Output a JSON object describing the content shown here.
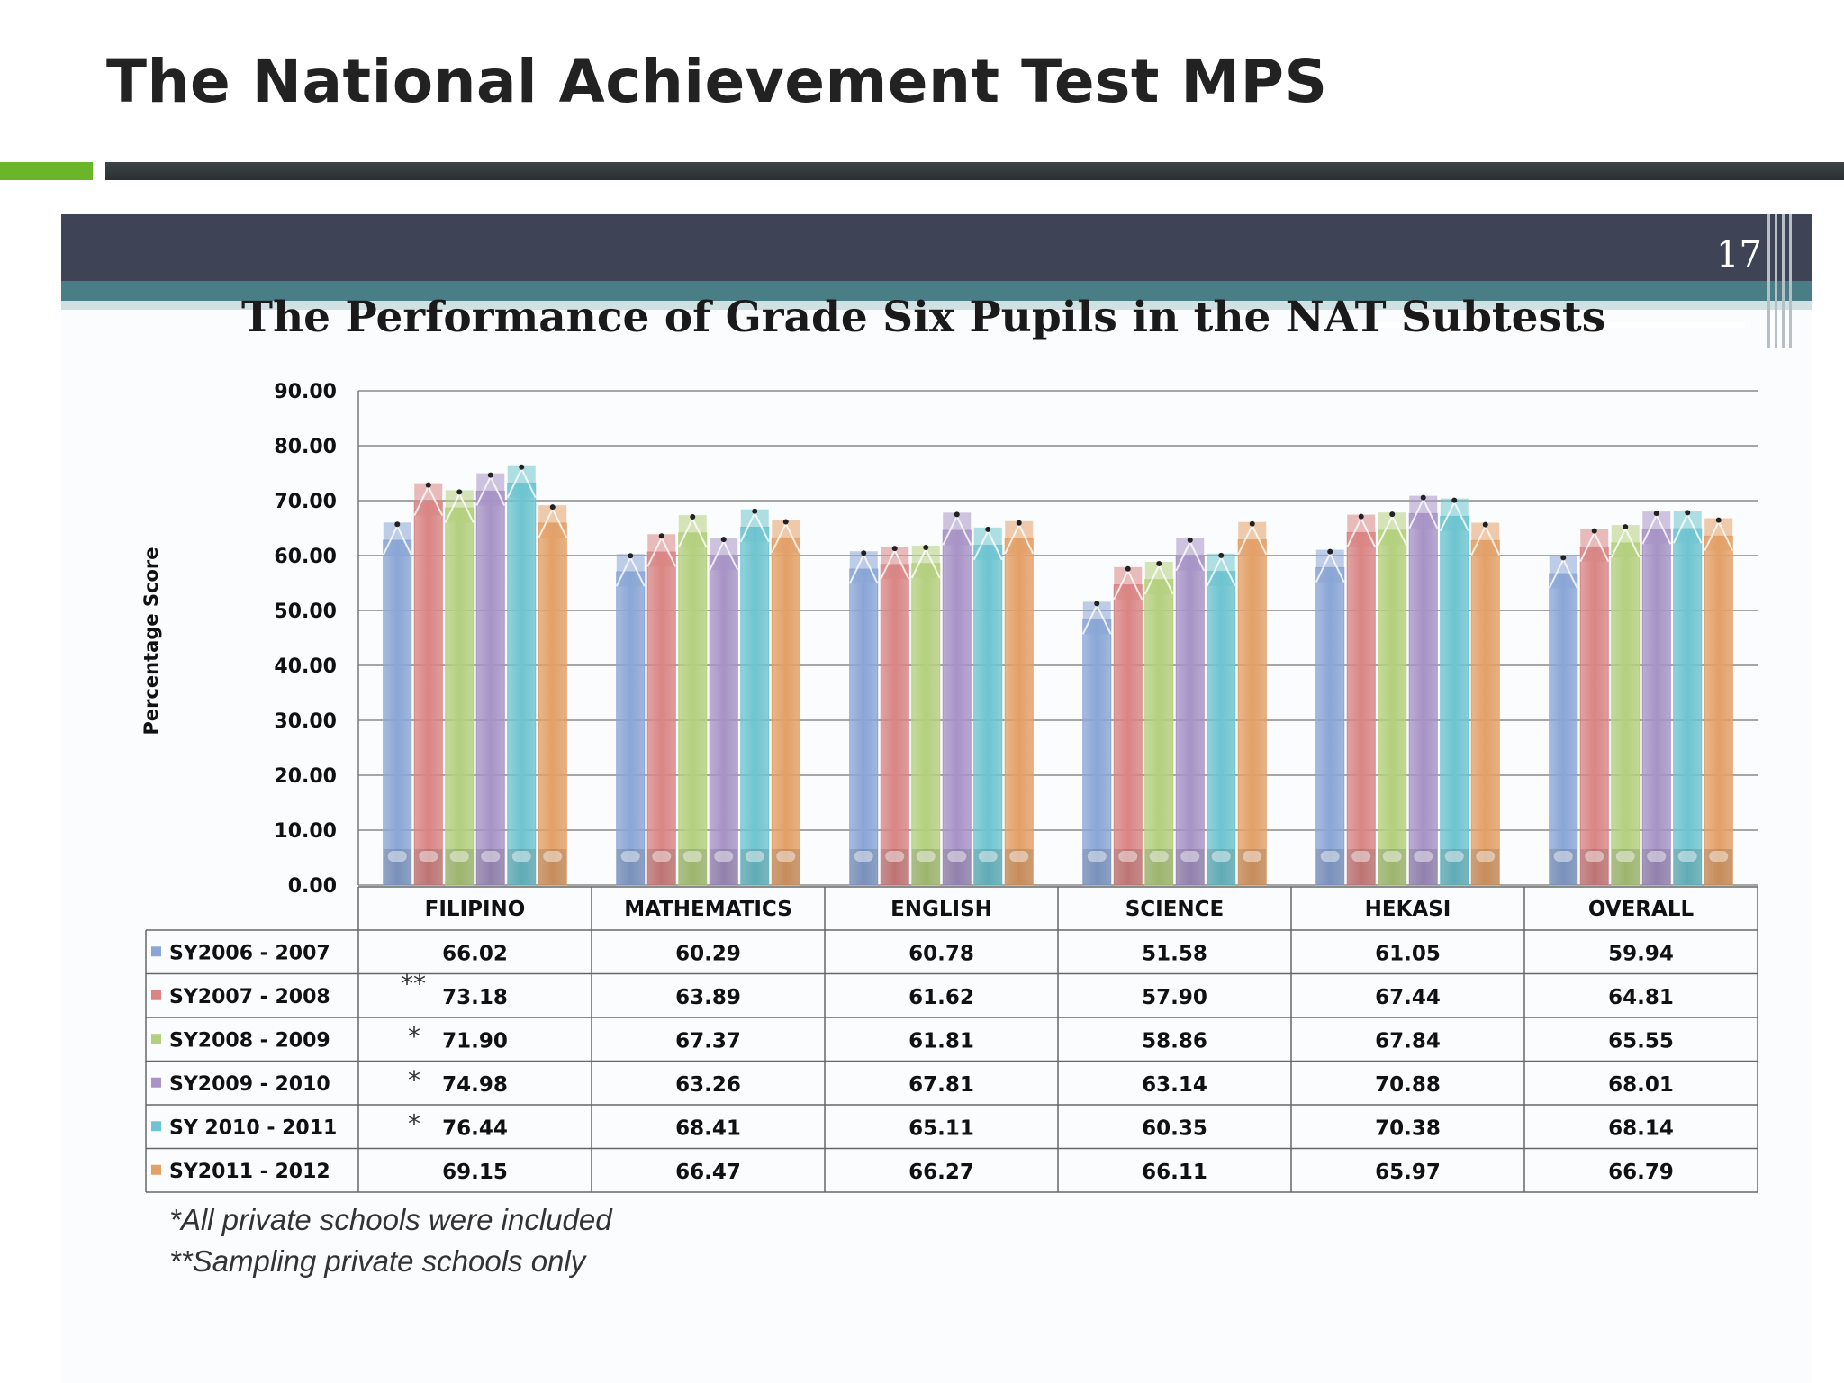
{
  "slide": {
    "title": "The National Achievement Test MPS",
    "page_number": "17"
  },
  "colors": {
    "accent_green": "#6bb52b",
    "accent_dark": "#2f3537",
    "header": "#3f4356",
    "teal": "#4a7e86"
  },
  "chart_data": {
    "type": "bar",
    "title": "The Performance of Grade Six Pupils in the NAT Subtests",
    "ylabel": "Percentage Score",
    "xlabel": "",
    "ylim": [
      0,
      90
    ],
    "yticks": [
      "0.00",
      "10.00",
      "20.00",
      "30.00",
      "40.00",
      "50.00",
      "60.00",
      "70.00",
      "80.00",
      "90.00"
    ],
    "grid": true,
    "legend": "table-below",
    "categories": [
      "FILIPINO",
      "MATHEMATICS",
      "ENGLISH",
      "SCIENCE",
      "HEKASI",
      "OVERALL"
    ],
    "series": [
      {
        "name": "SY2006 - 2007",
        "color": "#8aa6d6",
        "mark": "",
        "values": [
          66.02,
          60.29,
          60.78,
          51.58,
          61.05,
          59.94
        ],
        "labels": [
          "66.02",
          "60.29",
          "60.78",
          "51.58",
          "61.05",
          "59.94"
        ]
      },
      {
        "name": "SY2007 - 2008",
        "color": "#d98584",
        "mark": "**",
        "values": [
          73.18,
          63.89,
          61.62,
          57.9,
          67.44,
          64.81
        ],
        "labels": [
          "73.18",
          "63.89",
          "61.62",
          "57.90",
          "67.44",
          "64.81"
        ]
      },
      {
        "name": "SY2008 - 2009",
        "color": "#b4cf7e",
        "mark": "*",
        "values": [
          71.9,
          67.37,
          61.81,
          58.86,
          67.84,
          65.55
        ],
        "labels": [
          "71.90",
          "67.37",
          "61.81",
          "58.86",
          "67.84",
          "65.55"
        ]
      },
      {
        "name": "SY2009 - 2010",
        "color": "#a793c6",
        "mark": "*",
        "values": [
          74.98,
          63.26,
          67.81,
          63.14,
          70.88,
          68.01
        ],
        "labels": [
          "74.98",
          "63.26",
          "67.81",
          "63.14",
          "70.88",
          "68.01"
        ]
      },
      {
        "name": "SY 2010 - 2011",
        "color": "#6ec4d0",
        "mark": "*",
        "values": [
          76.44,
          68.41,
          65.11,
          60.35,
          70.38,
          68.14
        ],
        "labels": [
          "76.44",
          "68.41",
          "65.11",
          "60.35",
          "70.38",
          "68.14"
        ]
      },
      {
        "name": "SY2011 - 2012",
        "color": "#e3a067",
        "mark": "",
        "values": [
          69.15,
          66.47,
          66.27,
          66.11,
          65.97,
          66.79
        ],
        "labels": [
          "69.15",
          "66.47",
          "66.27",
          "66.11",
          "65.97",
          "66.79"
        ]
      }
    ],
    "footnotes": [
      "*All private schools were included",
      "**Sampling private schools only"
    ]
  }
}
